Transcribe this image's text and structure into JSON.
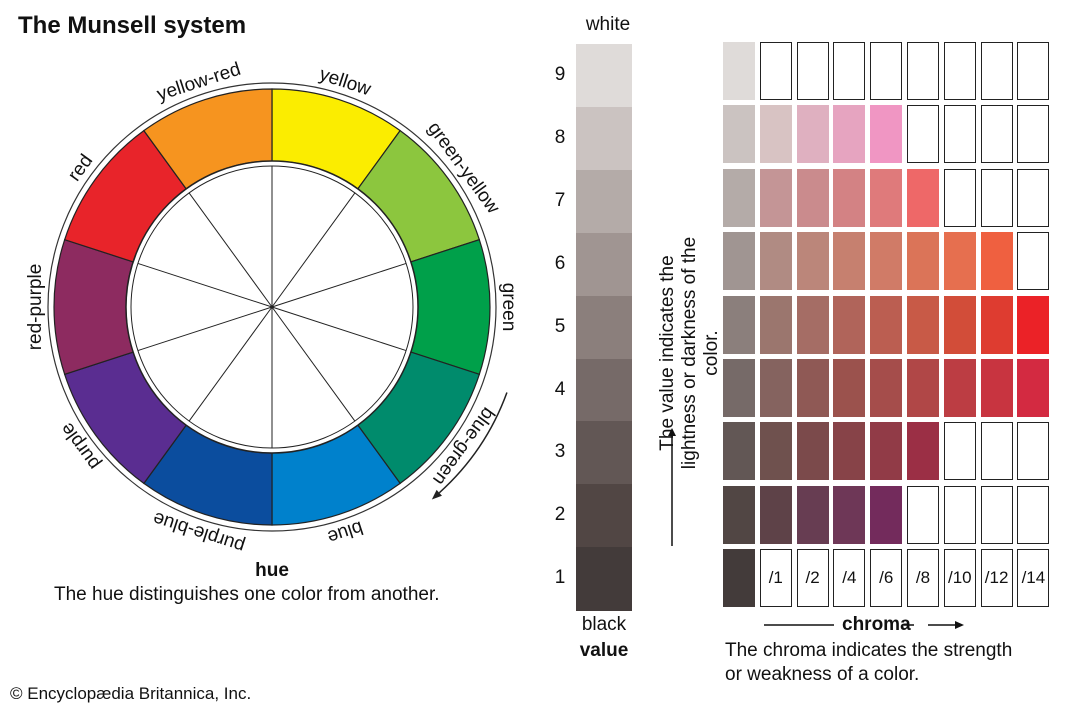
{
  "title": "The Munsell system",
  "copyright": "© Encyclopædia Britannica, Inc.",
  "hue": {
    "title": "hue",
    "description": "The hue distinguishes one color from another.",
    "segments": [
      {
        "label": "yellow",
        "color": "#fbed00"
      },
      {
        "label": "green-yellow",
        "color": "#8cc63e"
      },
      {
        "label": "green",
        "color": "#00a04a"
      },
      {
        "label": "blue-green",
        "color": "#008b6c"
      },
      {
        "label": "blue",
        "color": "#0081cc"
      },
      {
        "label": "purple-blue",
        "color": "#0b4d9e"
      },
      {
        "label": "purple",
        "color": "#5a2d91"
      },
      {
        "label": "red-purple",
        "color": "#8d2b60"
      },
      {
        "label": "red",
        "color": "#e8242a"
      },
      {
        "label": "yellow-red",
        "color": "#f6941f"
      }
    ]
  },
  "value": {
    "label": "value",
    "top_label": "white",
    "bottom_label": "black",
    "description": "The value indicates the lightness or darkness of the color.",
    "levels": [
      "9",
      "8",
      "7",
      "6",
      "5",
      "4",
      "3",
      "2",
      "1"
    ],
    "colors": [
      "#dfdbd9",
      "#cbc3c1",
      "#b4aba8",
      "#a09592",
      "#8b7f7c",
      "#766a68",
      "#625755",
      "#514644",
      "#433b3a"
    ]
  },
  "chroma": {
    "label": "chroma",
    "desc_line1": "The chroma indicates the strength",
    "desc_line2": "or weakness of a color.",
    "steps": [
      "/1",
      "/2",
      "/4",
      "/6",
      "/8",
      "/10",
      "/12",
      "/14"
    ],
    "rows": [
      [
        "#ffffff",
        "#ffffff",
        "#ffffff",
        "#ffffff",
        "#ffffff",
        "#ffffff",
        "#ffffff",
        "#ffffff"
      ],
      [
        "#d8c3c3",
        "#dfb0c0",
        "#e6a4c0",
        "#f096c3",
        "#ffffff",
        "#ffffff",
        "#ffffff",
        "#ffffff"
      ],
      [
        "#c49596",
        "#ca8b8d",
        "#d38284",
        "#df7a7b",
        "#ee6868",
        "#ffffff",
        "#ffffff",
        "#ffffff"
      ],
      [
        "#b08b83",
        "#bb867a",
        "#c6806f",
        "#d07b67",
        "#db7458",
        "#e66f4f",
        "#ef6040",
        "#ffffff"
      ],
      [
        "#9b766e",
        "#a56d65",
        "#b0645a",
        "#bb5e51",
        "#c85a47",
        "#d24d39",
        "#de3c30",
        "#eb2227"
      ],
      [
        "#85635f",
        "#8f5955",
        "#9b524d",
        "#a54d4b",
        "#b04747",
        "#bc3d43",
        "#c83440",
        "#d32a41"
      ],
      [
        "#6f514e",
        "#7b4a4b",
        "#874348",
        "#913b47",
        "#9b2f45",
        "#ffffff",
        "#ffffff",
        "#ffffff"
      ],
      [
        "#5e4248",
        "#673d52",
        "#6e3757",
        "#732b5c",
        "#ffffff",
        "#ffffff",
        "#ffffff",
        "#ffffff"
      ]
    ]
  }
}
